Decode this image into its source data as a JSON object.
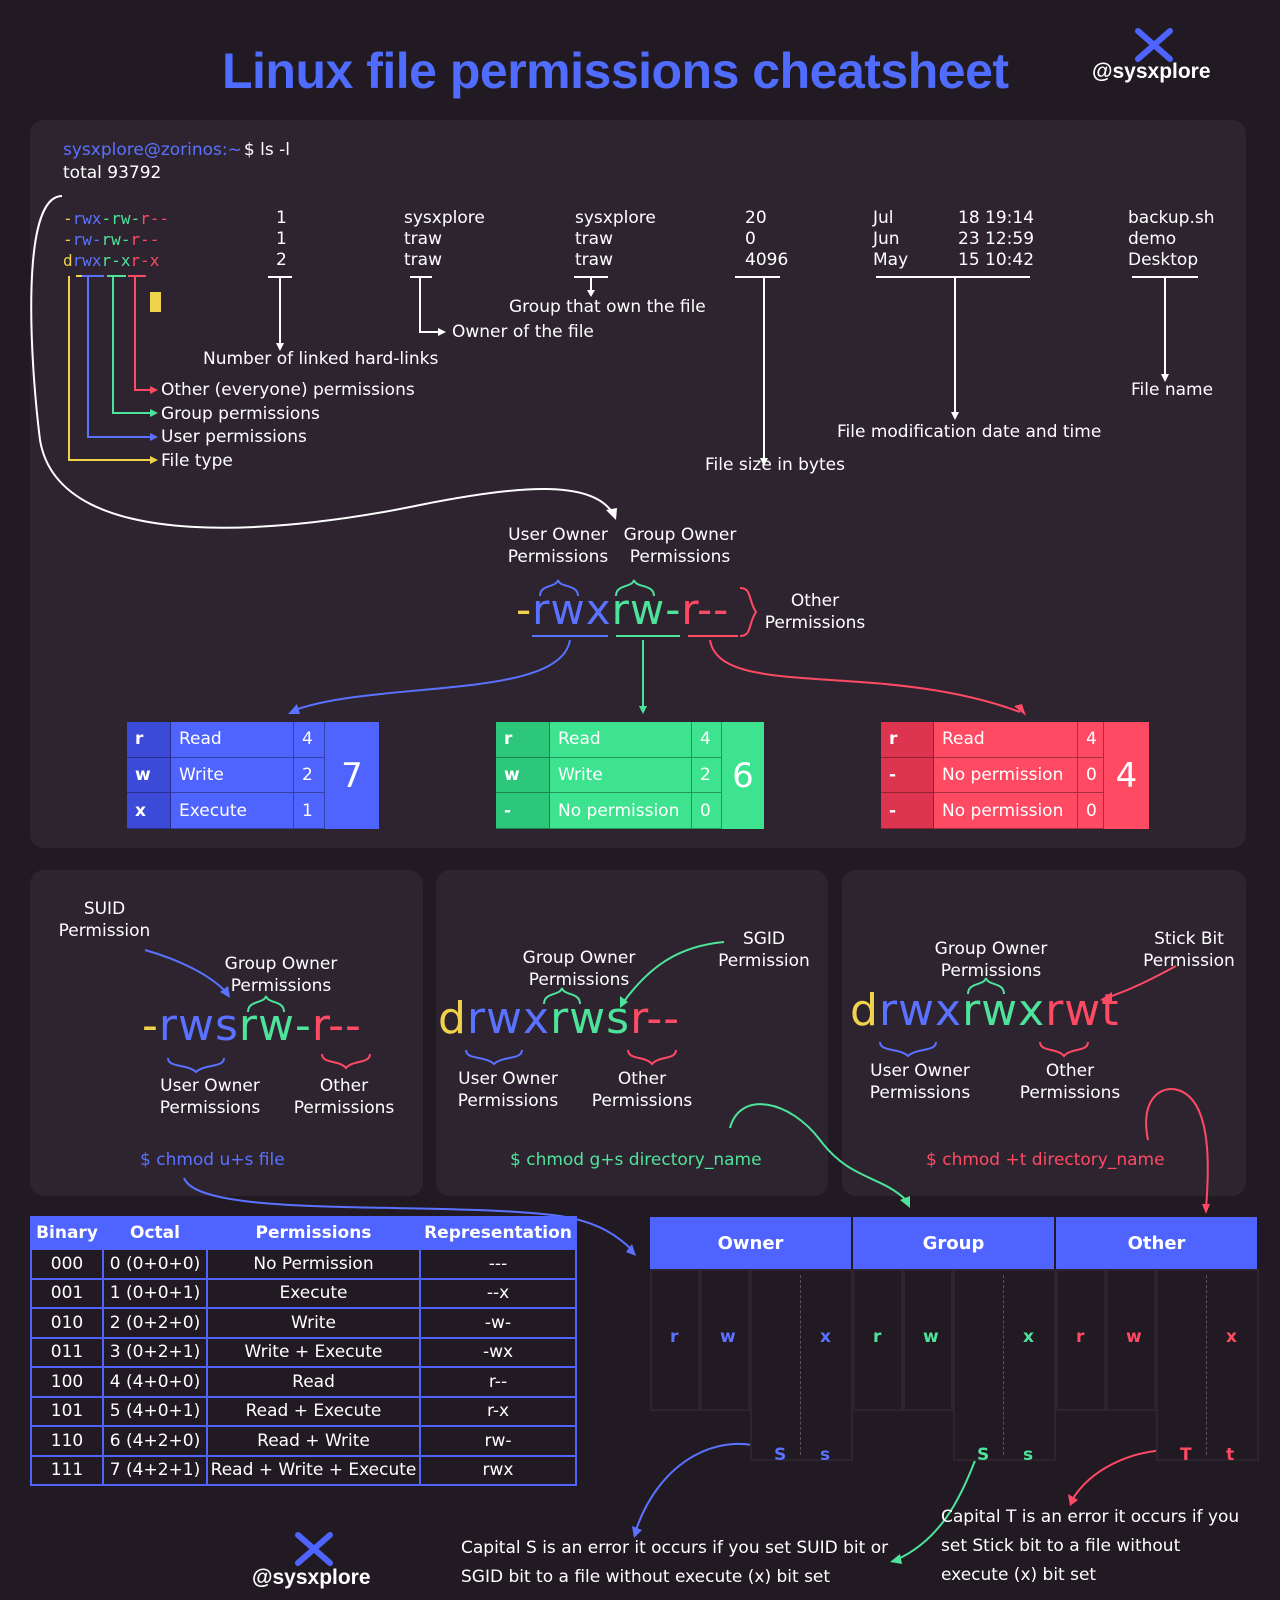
{
  "title": "Linux file permissions cheatsheet",
  "brand": "@sysxplore",
  "terminal": {
    "prompt_user": "sysxplore@zorinos",
    "prompt_path": ":~",
    "prompt_cmd": "$ ls -l",
    "total": "total 93792",
    "rows": [
      {
        "perm_a": "-rwx",
        "perm_b": "-rw-",
        "perm_c": "r--",
        "links": "1",
        "owner": "sysxplore",
        "group": "sysxplore",
        "size": "20",
        "month": "Jul",
        "datetime": "18 19:14",
        "name": "backup.sh"
      },
      {
        "perm_a": "-rw-",
        "perm_b": "rw-",
        "perm_c": "r--",
        "links": "1",
        "owner": "traw",
        "group": "traw",
        "size": "0",
        "month": "Jun",
        "datetime": "23 12:59",
        "name": "demo"
      },
      {
        "perm_a": "d",
        "perm_b": "rwxr-x",
        "perm_c": "r-x",
        "links": "2",
        "owner": "traw",
        "group": "traw",
        "size": "4096",
        "month": "May",
        "datetime": "15 10:42",
        "name": "Desktop"
      }
    ],
    "row1_perm": [
      "-",
      "rwx",
      "-rw-",
      "r--"
    ],
    "row2_perm": [
      "-",
      "rw-",
      "rw-",
      "r--"
    ],
    "row3_perm": [
      "d",
      "rwx",
      "r-x",
      "r-x"
    ]
  },
  "annotations": {
    "hard_links": "Number of linked hard-links",
    "group_owner": "Group that own the file",
    "owner": "Owner of the file",
    "other_perm": "Other (everyone) permissions",
    "group_perm": "Group permissions",
    "user_perm": "User permissions",
    "file_type": "File type",
    "file_size": "File size in bytes",
    "mod_date": "File modification date and time",
    "file_name": "File name"
  },
  "breakdown": {
    "user_owner": [
      "User Owner",
      "Permissions"
    ],
    "group_owner": [
      "Group Owner",
      "Permissions"
    ],
    "other": [
      "Other",
      "Permissions"
    ],
    "dash": "-",
    "user": "rwx",
    "group": "rw-",
    "other_bits": "r--"
  },
  "boxes": [
    {
      "rows": [
        [
          "r",
          "Read",
          "4"
        ],
        [
          "w",
          "Write",
          "2"
        ],
        [
          "x",
          "Execute",
          "1"
        ]
      ],
      "total": "7",
      "color": "#4f63ff",
      "color_dark": "#3b4bd8"
    },
    {
      "rows": [
        [
          "r",
          "Read",
          "4"
        ],
        [
          "w",
          "Write",
          "2"
        ],
        [
          "-",
          "No permission",
          "0"
        ]
      ],
      "total": "6",
      "color": "#3ee38f",
      "color_dark": "#2cc77a"
    },
    {
      "rows": [
        [
          "r",
          "Read",
          "4"
        ],
        [
          "-",
          "No permission",
          "0"
        ],
        [
          "-",
          "No permission",
          "0"
        ]
      ],
      "total": "4",
      "color": "#ff4a64",
      "color_dark": "#dd3550"
    }
  ],
  "suid": {
    "title": [
      "SUID",
      "Permission"
    ],
    "group": [
      "Group Owner",
      "Permissions"
    ],
    "user": [
      "User Owner",
      "Permissions"
    ],
    "other": [
      "Other",
      "Permissions"
    ],
    "p1": "-",
    "p2": "rws",
    "p3": "rw-",
    "p4": "r--",
    "cmd": "$ chmod u+s file"
  },
  "sgid": {
    "title": [
      "SGID",
      "Permission"
    ],
    "group": [
      "Group Owner",
      "Permissions"
    ],
    "user": [
      "User Owner",
      "Permissions"
    ],
    "other": [
      "Other",
      "Permissions"
    ],
    "p1": "d",
    "p2": "rwx",
    "p3": "rws",
    "p4": "r--",
    "cmd": "$ chmod g+s directory_name"
  },
  "sticky": {
    "title": [
      "Stick Bit",
      "Permission"
    ],
    "group": [
      "Group Owner",
      "Permissions"
    ],
    "user": [
      "User Owner",
      "Permissions"
    ],
    "other": [
      "Other",
      "Permissions"
    ],
    "p1": "d",
    "p2": "rwx",
    "p3": "rwx",
    "p4": "rwt",
    "cmd": "$ chmod +t directory_name"
  },
  "table": {
    "headers": [
      "Binary",
      "Octal",
      "Permissions",
      "Representation"
    ],
    "rows": [
      [
        "000",
        "0 (0+0+0)",
        "No Permission",
        "---"
      ],
      [
        "001",
        "1 (0+0+1)",
        "Execute",
        "--x"
      ],
      [
        "010",
        "2 (0+2+0)",
        "Write",
        "-w-"
      ],
      [
        "011",
        "3 (0+2+1)",
        "Write + Execute",
        "-wx"
      ],
      [
        "100",
        "4 (4+0+0)",
        "Read",
        "r--"
      ],
      [
        "101",
        "5 (4+0+1)",
        "Read + Execute",
        "r-x"
      ],
      [
        "110",
        "6 (4+2+0)",
        "Read + Write",
        "rw-"
      ],
      [
        "111",
        "7 (4+2+1)",
        "Read + Write + Execute",
        "rwx"
      ]
    ]
  },
  "ogo": {
    "headers": [
      "Owner",
      "Group",
      "Other"
    ],
    "bits": [
      "r",
      "w",
      "x"
    ],
    "special": [
      [
        "S",
        "s"
      ],
      [
        "S",
        "s"
      ],
      [
        "T",
        "t"
      ]
    ]
  },
  "notes": {
    "capital_s": [
      "Capital S is an error it occurs if you set SUID bit or",
      "SGID bit to a file without execute (x) bit set"
    ],
    "capital_t": [
      "Capital T is an error it occurs if you",
      "set Stick bit to a file without",
      "execute (x) bit set"
    ]
  }
}
